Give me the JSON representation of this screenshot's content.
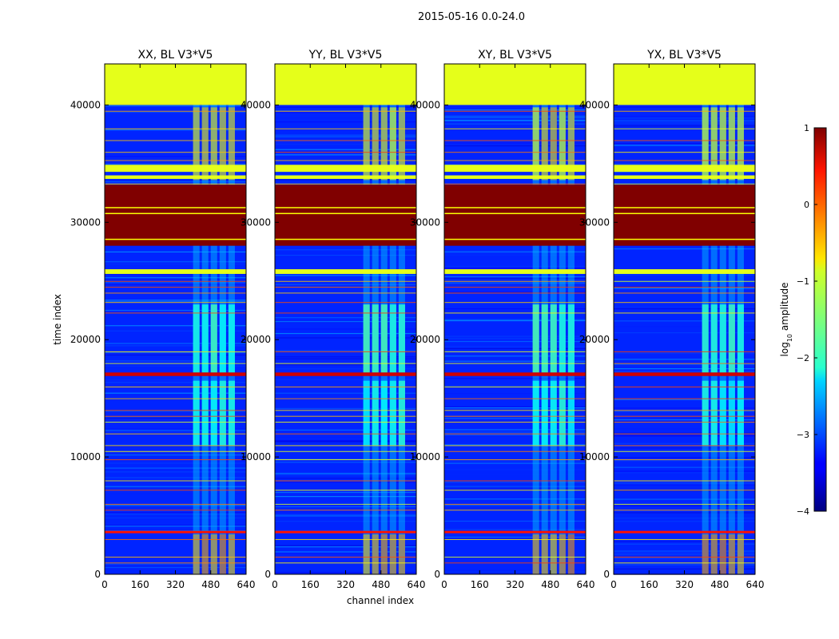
{
  "suptitle": "2015-05-16 0.0-24.0",
  "chart_data": {
    "type": "heatmap",
    "panels": [
      {
        "title": "XX, BL V3*V5"
      },
      {
        "title": "YY, BL V3*V5"
      },
      {
        "title": "XY, BL V3*V5"
      },
      {
        "title": "YX, BL V3*V5"
      }
    ],
    "xlabel": "channel index",
    "ylabel": "time index",
    "xlim": [
      0,
      640
    ],
    "ylim": [
      0,
      43500
    ],
    "xticks": [
      "0",
      "160",
      "320",
      "480",
      "640"
    ],
    "yticks": [
      "0",
      "10000",
      "20000",
      "30000",
      "40000"
    ],
    "ytick_values": [
      0,
      10000,
      20000,
      30000,
      40000
    ],
    "xtick_values": [
      0,
      160,
      320,
      480,
      640
    ],
    "colorbar": {
      "label": "log$_{10}$ amplitude",
      "label_main": "log",
      "label_sub": "10",
      "label_rest": " amplitude",
      "range": [
        -4,
        1
      ],
      "ticks": [
        "1",
        "0",
        "−1",
        "−2",
        "−3",
        "−4"
      ],
      "tick_values": [
        1,
        0,
        -1,
        -2,
        -3,
        -4
      ],
      "colormap": "jet"
    },
    "bands": [
      {
        "t0": 40000,
        "t1": 43500,
        "value": -1.0
      },
      {
        "t0": 34300,
        "t1": 34900,
        "value": -1.0
      },
      {
        "t0": 33700,
        "t1": 34000,
        "value": -1.0
      },
      {
        "t0": 28000,
        "t1": 33200,
        "value": 1.0
      },
      {
        "t0": 25600,
        "t1": 26000,
        "value": -1.0
      },
      {
        "t0": 16900,
        "t1": 17200,
        "value": 0.6
      },
      {
        "t0": 3500,
        "t1": 3700,
        "value": 0.3
      }
    ],
    "background_value": -3.2,
    "signal_channels": [
      400,
      600
    ],
    "signal_ranges": [
      {
        "t0": 0,
        "t1": 3400,
        "value": 0.0
      },
      {
        "t0": 33600,
        "t1": 39800,
        "value": -0.4
      },
      {
        "t0": 17200,
        "t1": 23000,
        "value": -1.8
      },
      {
        "t0": 11000,
        "t1": 16500,
        "value": -2.0
      }
    ]
  }
}
